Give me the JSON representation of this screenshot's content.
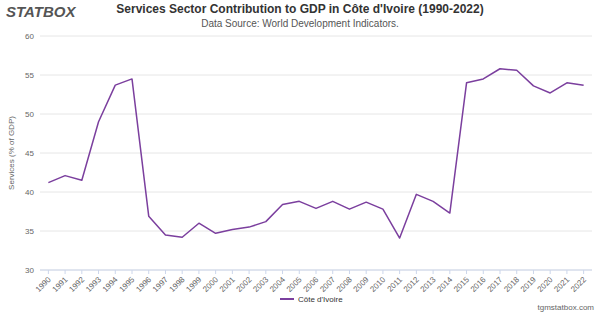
{
  "chart_data": {
    "type": "line",
    "title": "Services Sector Contribution to GDP in Côte d'Ivoire (1990-2022)",
    "subtitle": "Data Source: World Development Indicators.",
    "brand": "STATBOX",
    "credit": "tgmstatbox.com",
    "y_label": "Services (% of GDP)",
    "categories": [
      "1990",
      "1991",
      "1992",
      "1993",
      "1994",
      "1995",
      "1996",
      "1997",
      "1998",
      "1999",
      "2000",
      "2001",
      "2002",
      "2003",
      "2004",
      "2005",
      "2006",
      "2007",
      "2008",
      "2009",
      "2010",
      "2011",
      "2012",
      "2013",
      "2014",
      "2015",
      "2016",
      "2017",
      "2018",
      "2019",
      "2020",
      "2021",
      "2022"
    ],
    "series": [
      {
        "name": "Côte d'Ivoire",
        "color": "#7b3f9e",
        "values": [
          41.2,
          42.1,
          41.5,
          49.0,
          53.7,
          54.5,
          36.9,
          34.5,
          34.2,
          36.0,
          34.7,
          35.2,
          35.5,
          36.2,
          38.4,
          38.8,
          37.9,
          38.8,
          37.8,
          38.7,
          37.8,
          34.1,
          39.7,
          38.8,
          37.3,
          54.0,
          54.5,
          55.8,
          55.6,
          53.6,
          52.7,
          54.0,
          53.7
        ]
      }
    ],
    "ylim": [
      30,
      60
    ],
    "yticks": [
      30,
      35,
      40,
      45,
      50,
      55,
      60
    ],
    "grid": true,
    "legend": "bottom"
  }
}
